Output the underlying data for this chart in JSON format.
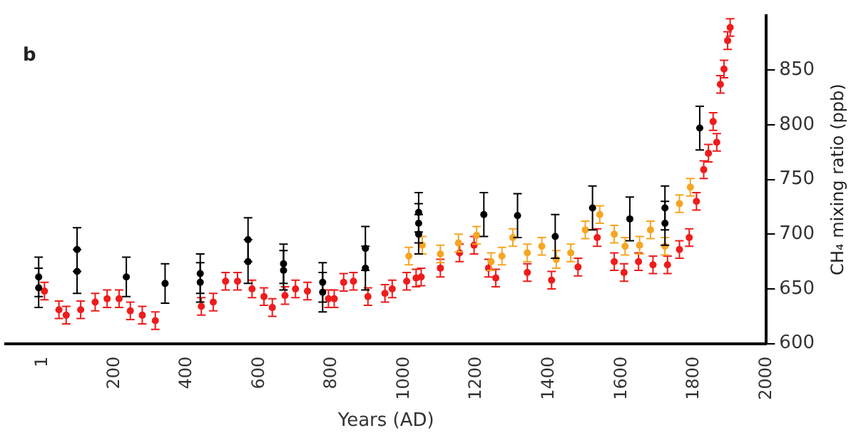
{
  "chart_data": {
    "type": "scatter",
    "ylabel": "CH₄ mixing ratio (ppb)",
    "xlabel": "Years (AD)",
    "annotations": [
      "b"
    ],
    "xlim": [
      -100,
      2000
    ],
    "xticks": [
      1,
      200,
      400,
      600,
      800,
      1000,
      1200,
      1400,
      1600,
      1800,
      2000
    ],
    "ylim": [
      600,
      900
    ],
    "yticks": [
      600,
      650,
      700,
      750,
      800,
      850
    ],
    "grid": false,
    "legend": false,
    "marker": "circle",
    "series": [
      {
        "color": "#ee1c1c",
        "x": [
          7,
          47,
          67,
          107,
          147,
          180,
          213,
          244,
          277,
          313,
          440,
          473,
          507,
          540,
          580,
          613,
          636,
          671,
          700,
          733,
          791,
          807,
          833,
          860,
          900,
          947,
          967,
          1007,
          1033,
          1047,
          1100,
          1153,
          1193,
          1233,
          1253,
          1340,
          1407,
          1480,
          1533,
          1580,
          1607,
          1647,
          1687,
          1727,
          1760,
          1787,
          1807,
          1827,
          1840,
          1853,
          1863,
          1873,
          1883,
          1893,
          1900
        ],
        "values": [
          648,
          631,
          626,
          631,
          638,
          641,
          641,
          630,
          626,
          621,
          634,
          638,
          657,
          657,
          650,
          643,
          633,
          644,
          650,
          648,
          641,
          641,
          656,
          657,
          643,
          646,
          650,
          657,
          660,
          661,
          669,
          683,
          690,
          669,
          660,
          665,
          658,
          670,
          697,
          675,
          665,
          675,
          672,
          672,
          686,
          697,
          730,
          759,
          774,
          803,
          784,
          837,
          851,
          877,
          889
        ],
        "errors": [
          8,
          8,
          8,
          8,
          8,
          8,
          8,
          8,
          8,
          8,
          8,
          8,
          8,
          8,
          8,
          8,
          8,
          8,
          8,
          8,
          8,
          8,
          8,
          8,
          8,
          8,
          8,
          8,
          8,
          8,
          8,
          8,
          8,
          8,
          8,
          8,
          8,
          8,
          8,
          8,
          8,
          8,
          8,
          8,
          8,
          8,
          8,
          8,
          8,
          8,
          8,
          8,
          8,
          8,
          8
        ]
      },
      {
        "color": "#f5a623",
        "x": [
          1013,
          1050,
          1100,
          1150,
          1200,
          1240,
          1270,
          1300,
          1340,
          1380,
          1420,
          1460,
          1500,
          1540,
          1580,
          1610,
          1650,
          1680,
          1720,
          1760,
          1790
        ],
        "values": [
          680,
          690,
          682,
          692,
          699,
          675,
          680,
          697,
          683,
          689,
          677,
          683,
          704,
          718,
          700,
          689,
          690,
          704,
          689,
          728,
          743
        ],
        "errors": [
          8,
          8,
          8,
          8,
          8,
          8,
          8,
          8,
          8,
          8,
          8,
          8,
          8,
          8,
          8,
          8,
          8,
          8,
          8,
          8,
          8
        ]
      },
      {
        "color": "#000000",
        "x": [
          -9,
          -9,
          97,
          97,
          233,
          340,
          437,
          437,
          569,
          569,
          667,
          667,
          775,
          775,
          893,
          893,
          1040,
          1040,
          1040,
          1220,
          1313,
          1417,
          1520,
          1623,
          1720,
          1720,
          1816
        ],
        "values": [
          661,
          651,
          686,
          666,
          661,
          655,
          664,
          656,
          695,
          675,
          673,
          667,
          656,
          647,
          687,
          669,
          720,
          710,
          700,
          718,
          717,
          698,
          724,
          714,
          724,
          710,
          797
        ],
        "errors": [
          18,
          18,
          20,
          20,
          18,
          18,
          18,
          18,
          20,
          20,
          18,
          18,
          18,
          18,
          20,
          20,
          18,
          18,
          18,
          20,
          20,
          20,
          20,
          20,
          20,
          20,
          20
        ]
      }
    ]
  }
}
